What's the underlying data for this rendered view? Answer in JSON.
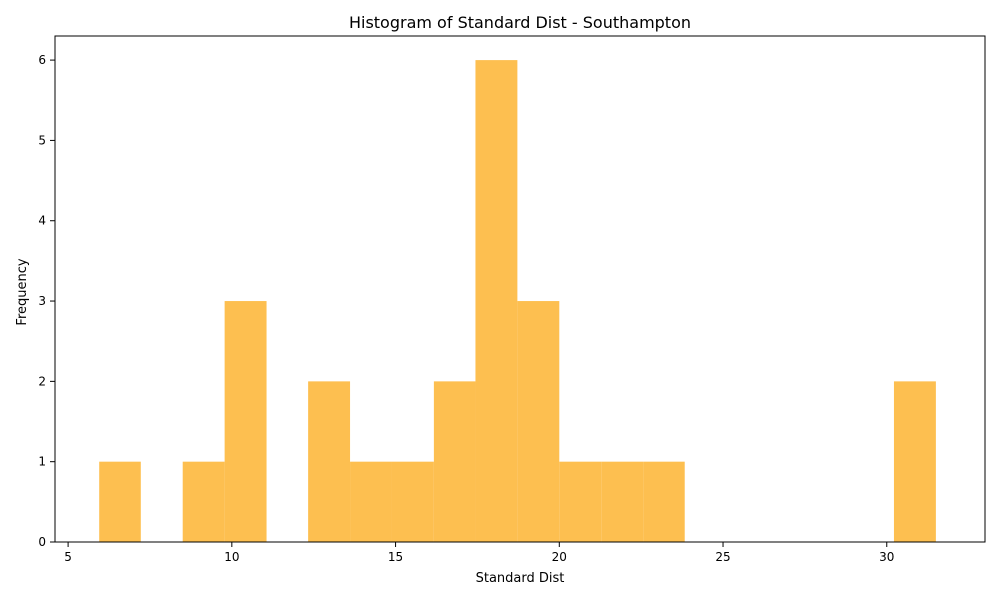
{
  "chart_data": {
    "type": "bar",
    "title": "Histogram of Standard Dist - Southampton",
    "xlabel": "Standard Dist",
    "ylabel": "Frequency",
    "xlim": [
      4.6,
      33.0
    ],
    "ylim": [
      0,
      6.3
    ],
    "xticks": [
      5,
      10,
      15,
      20,
      25,
      30
    ],
    "yticks": [
      0,
      1,
      2,
      3,
      4,
      5,
      6
    ],
    "grid": false,
    "bar_color": "#FDBF50",
    "bins": [
      {
        "start": 5.95,
        "end": 7.22,
        "count": 1
      },
      {
        "start": 7.22,
        "end": 8.5,
        "count": 0
      },
      {
        "start": 8.5,
        "end": 9.78,
        "count": 1
      },
      {
        "start": 9.78,
        "end": 11.06,
        "count": 3
      },
      {
        "start": 11.06,
        "end": 12.33,
        "count": 0
      },
      {
        "start": 12.33,
        "end": 13.61,
        "count": 2
      },
      {
        "start": 13.61,
        "end": 14.89,
        "count": 1
      },
      {
        "start": 14.89,
        "end": 16.17,
        "count": 1
      },
      {
        "start": 16.17,
        "end": 17.44,
        "count": 2
      },
      {
        "start": 17.44,
        "end": 18.72,
        "count": 6
      },
      {
        "start": 18.72,
        "end": 20.0,
        "count": 3
      },
      {
        "start": 20.0,
        "end": 21.28,
        "count": 1
      },
      {
        "start": 21.28,
        "end": 22.56,
        "count": 1
      },
      {
        "start": 22.56,
        "end": 23.83,
        "count": 1
      },
      {
        "start": 23.83,
        "end": 25.11,
        "count": 0
      },
      {
        "start": 25.11,
        "end": 26.39,
        "count": 0
      },
      {
        "start": 26.39,
        "end": 27.67,
        "count": 0
      },
      {
        "start": 27.67,
        "end": 28.94,
        "count": 0
      },
      {
        "start": 28.94,
        "end": 30.22,
        "count": 0
      },
      {
        "start": 30.22,
        "end": 31.5,
        "count": 2
      }
    ]
  }
}
